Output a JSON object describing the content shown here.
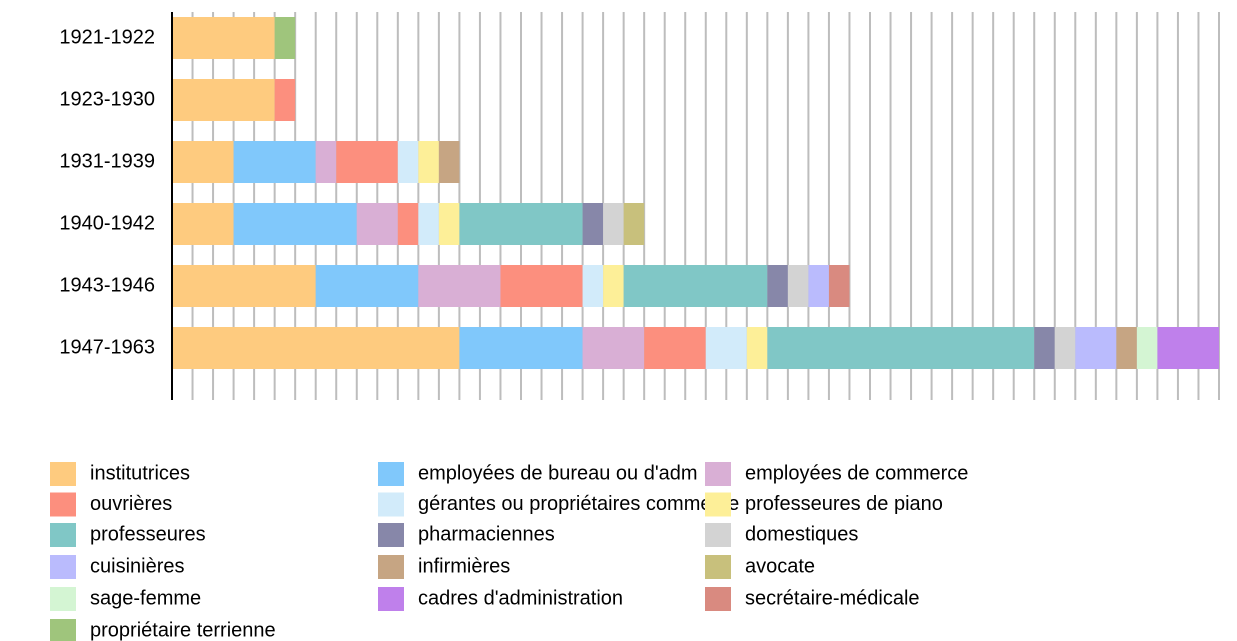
{
  "chart_data": {
    "type": "stacked-bar-horizontal",
    "categories": [
      "1921-1922",
      "1923-1930",
      "1931-1939",
      "1940-1942",
      "1943-1946",
      "1947-1963"
    ],
    "xlim": [
      0,
      51
    ],
    "xticks": [
      0,
      1,
      2,
      3,
      4,
      5,
      6,
      7,
      8,
      9,
      10,
      11,
      12,
      13,
      14,
      15,
      16,
      17,
      18,
      19,
      20,
      21,
      22,
      23,
      24,
      25,
      26,
      27,
      28,
      29,
      30,
      31,
      32,
      33,
      34,
      35,
      36,
      37,
      38,
      39,
      40,
      41,
      42,
      43,
      44,
      45,
      46,
      47,
      48,
      49,
      50,
      51
    ],
    "grid": true,
    "legend": "bottom",
    "series": [
      {
        "name": "institutrices",
        "color": "#fecb7f",
        "values": [
          5,
          5,
          3,
          3,
          7,
          14
        ]
      },
      {
        "name": "employées de bureau ou d'adm",
        "color": "#80c8fb",
        "values": [
          null,
          null,
          4,
          6,
          5,
          6
        ]
      },
      {
        "name": "employées de commerce",
        "color": "#d9afd5",
        "values": [
          null,
          null,
          1,
          2,
          4,
          3
        ]
      },
      {
        "name": "ouvrières",
        "color": "#fc8f7e",
        "values": [
          null,
          1,
          3,
          1,
          4,
          3
        ]
      },
      {
        "name": "gérantes ou propriétaires commerce",
        "color": "#d2ebfa",
        "values": [
          null,
          null,
          1,
          1,
          1,
          2
        ]
      },
      {
        "name": "professeures de piano",
        "color": "#fdef98",
        "values": [
          null,
          null,
          1,
          1,
          1,
          1
        ]
      },
      {
        "name": "professeures",
        "color": "#80c7c6",
        "values": [
          null,
          null,
          null,
          6,
          7,
          13
        ]
      },
      {
        "name": "pharmaciennes",
        "color": "#8787a9",
        "values": [
          null,
          null,
          null,
          1,
          1,
          1
        ]
      },
      {
        "name": "domestiques",
        "color": "#d3d3d3",
        "values": [
          null,
          null,
          null,
          1,
          1,
          1
        ]
      },
      {
        "name": "cuisinières",
        "color": "#babbfd",
        "values": [
          null,
          null,
          null,
          null,
          1,
          2
        ]
      },
      {
        "name": "infirmières",
        "color": "#c6a583",
        "values": [
          null,
          null,
          1,
          null,
          null,
          1
        ]
      },
      {
        "name": "avocate",
        "color": "#c8c07c",
        "values": [
          null,
          null,
          null,
          1,
          null,
          null
        ]
      },
      {
        "name": "sage-femme",
        "color": "#d4f5d3",
        "values": [
          null,
          null,
          null,
          null,
          null,
          1
        ]
      },
      {
        "name": "cadres d'administration",
        "color": "#bf80eb",
        "values": [
          null,
          null,
          null,
          null,
          null,
          3
        ]
      },
      {
        "name": "secrétaire-médicale",
        "color": "#d98a80",
        "values": [
          null,
          null,
          null,
          null,
          1,
          null
        ]
      },
      {
        "name": "propriétaire terrienne",
        "color": "#9fc57c",
        "values": [
          1,
          null,
          null,
          null,
          null,
          null
        ]
      }
    ]
  }
}
